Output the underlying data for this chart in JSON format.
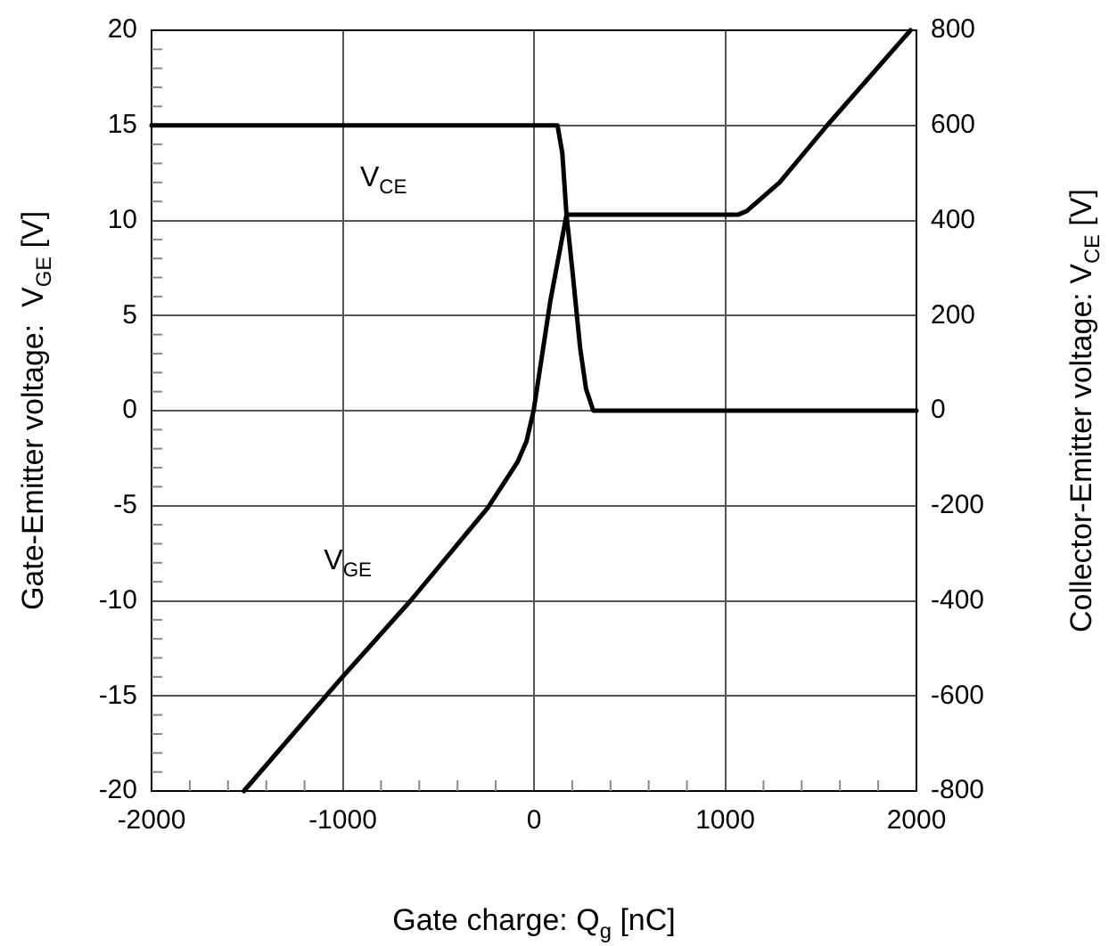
{
  "chart_data": {
    "type": "line",
    "xlabel": "Gate charge: Q$_{g}$ [nC]",
    "ylabel": "Gate-Emitter voltage:  V$_{GE}$ [V]",
    "y2label": "Collector-Emitter voltage: V$_{CE}$ [V]",
    "series": [
      {
        "name": "V$_{GE}$",
        "color": "#000000",
        "axis": "y",
        "x": [
          -1517,
          -1019,
          -646,
          -241,
          -86,
          -39,
          -2,
          86,
          170,
          1066,
          1113,
          1284,
          1533,
          1969
        ],
        "values": [
          -20,
          -14.2,
          -10,
          -5.1,
          -2.7,
          -1.6,
          0,
          5.8,
          10.3,
          10.3,
          10.5,
          12,
          15,
          20
        ]
      },
      {
        "name": "V$_{CE}$",
        "color": "#000000",
        "axis": "y2",
        "x": [
          -2000,
          123,
          148,
          170,
          201,
          241,
          272,
          310,
          2000
        ],
        "values": [
          600,
          600,
          542,
          412,
          294,
          133,
          46,
          0,
          0
        ]
      }
    ],
    "xlim": [
      -2000,
      2000
    ],
    "ylim": [
      -20,
      20
    ],
    "y2lim": [
      -800,
      800
    ],
    "xticks": [
      -2000,
      {
        "value": -1800,
        "label": null
      },
      {
        "value": -1600,
        "label": null
      },
      {
        "value": -1400,
        "label": null
      },
      {
        "value": -1200,
        "label": null
      },
      -1000,
      {
        "value": -800,
        "label": null
      },
      {
        "value": -600,
        "label": null
      },
      {
        "value": -400,
        "label": null
      },
      {
        "value": -200,
        "label": null
      },
      0,
      {
        "value": 200,
        "label": null
      },
      {
        "value": 400,
        "label": null
      },
      {
        "value": 600,
        "label": null
      },
      {
        "value": 800,
        "label": null
      },
      1000,
      {
        "value": 1200,
        "label": null
      },
      {
        "value": 1400,
        "label": null
      },
      {
        "value": 1600,
        "label": null
      },
      {
        "value": 1800,
        "label": null
      },
      2000
    ],
    "yticks": [
      -20,
      {
        "value": -19,
        "label": null
      },
      {
        "value": -18,
        "label": null
      },
      {
        "value": -17,
        "label": null
      },
      {
        "value": -16,
        "label": null
      },
      -15,
      {
        "value": -14,
        "label": null
      },
      {
        "value": -13,
        "label": null
      },
      {
        "value": -12,
        "label": null
      },
      {
        "value": -11,
        "label": null
      },
      -10,
      {
        "value": -9,
        "label": null
      },
      {
        "value": -8,
        "label": null
      },
      {
        "value": -7,
        "label": null
      },
      {
        "value": -6,
        "label": null
      },
      -5,
      {
        "value": -4,
        "label": null
      },
      {
        "value": -3,
        "label": null
      },
      {
        "value": -2,
        "label": null
      },
      {
        "value": -1,
        "label": null
      },
      0,
      {
        "value": 1,
        "label": null
      },
      {
        "value": 2,
        "label": null
      },
      {
        "value": 3,
        "label": null
      },
      {
        "value": 4,
        "label": null
      },
      5,
      {
        "value": 6,
        "label": null
      },
      {
        "value": 7,
        "label": null
      },
      {
        "value": 8,
        "label": null
      },
      {
        "value": 9,
        "label": null
      },
      10,
      {
        "value": 11,
        "label": null
      },
      {
        "value": 12,
        "label": null
      },
      {
        "value": 13,
        "label": null
      },
      {
        "value": 14,
        "label": null
      },
      15,
      {
        "value": 16,
        "label": null
      },
      {
        "value": 17,
        "label": null
      },
      {
        "value": 18,
        "label": null
      },
      {
        "value": 19,
        "label": null
      },
      20
    ],
    "y2ticks": [
      -800,
      -600,
      -400,
      -200,
      0,
      200,
      400,
      600,
      800
    ],
    "grid": true,
    "legend": false,
    "marker": "none",
    "line_style": "solid"
  }
}
